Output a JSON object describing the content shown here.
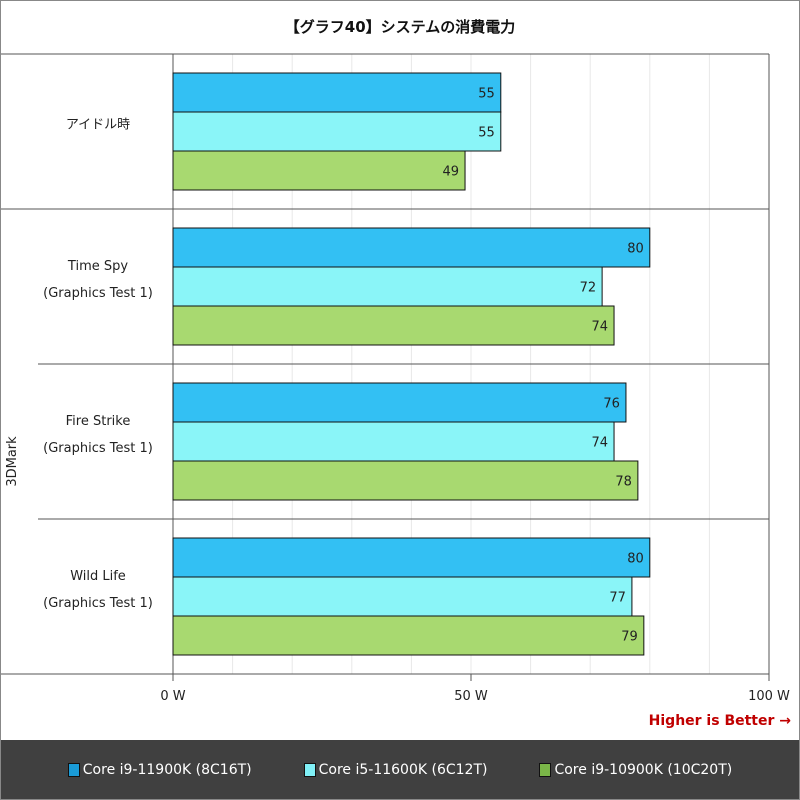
{
  "chart_data": {
    "type": "bar",
    "orientation": "horizontal",
    "title": "【グラフ40】システムの消費電力",
    "group_label": "3DMark",
    "categories": [
      {
        "lines": [
          "アイドル時"
        ]
      },
      {
        "lines": [
          "Time Spy",
          "(Graphics Test 1)"
        ]
      },
      {
        "lines": [
          "Fire Strike",
          "(Graphics Test 1)"
        ]
      },
      {
        "lines": [
          "Wild Life",
          "(Graphics Test 1)"
        ]
      }
    ],
    "series": [
      {
        "name": "Core i9-11900K (8C16T)",
        "color": "#33c0f3",
        "legend_color": "#1a9bd7",
        "values": [
          55,
          80,
          76,
          80
        ]
      },
      {
        "name": "Core i5-11600K (6C12T)",
        "color": "#8af5f8",
        "legend_color": "#80f0f6",
        "values": [
          55,
          72,
          74,
          77
        ]
      },
      {
        "name": "Core i9-10900K (10C20T)",
        "color": "#a8d970",
        "legend_color": "#7ab648",
        "values": [
          49,
          74,
          78,
          79
        ]
      }
    ],
    "xlim": [
      0,
      100
    ],
    "xticks": [
      "0 W",
      "50 W",
      "100 W"
    ],
    "xtick_values": [
      0,
      50,
      100
    ],
    "minor_grid_step": 10,
    "grid": true,
    "annotation": "Higher is Better →",
    "legend_position": "bottom"
  }
}
